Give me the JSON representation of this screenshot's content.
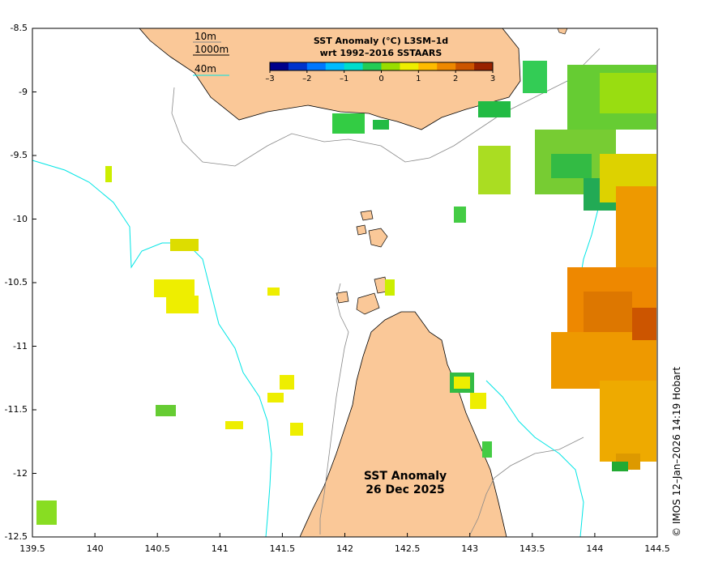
{
  "map": {
    "title_line1": "SST Anomaly",
    "title_line2": "26 Dec 2025",
    "credit": "© IMOS 12–Jan–2026 14:19 Hobart",
    "axes": {
      "lon_ticks": [
        "139.5",
        "140",
        "140.5",
        "141",
        "141.5",
        "142",
        "142.5",
        "143",
        "143.5",
        "144",
        "144.5"
      ],
      "lat_ticks": [
        "-8.5",
        "-9",
        "-9.5",
        "-10",
        "-10.5",
        "-11",
        "-11.5",
        "-12",
        "-12.5"
      ]
    },
    "legend": {
      "depth_labels": [
        "10m",
        "1000m",
        "40m"
      ],
      "colorbar_title_line1": "SST Anomaly (°C) L3SM–1d",
      "colorbar_title_line2": "wrt 1992–2016 SSTAARS",
      "colorbar_ticks": [
        "–3",
        "–2",
        "–1",
        "0",
        "1",
        "2",
        "3"
      ],
      "colorbar_colors": [
        "#00008b",
        "#0033cc",
        "#0077ff",
        "#00bbff",
        "#00ddcc",
        "#22cc55",
        "#99dd00",
        "#eeee00",
        "#ffbb00",
        "#ee8800",
        "#cc5500",
        "#992200"
      ]
    },
    "colors": {
      "land": "#fac898",
      "coast": "#000000",
      "iso10": "#888888",
      "iso40": "#00e5e5"
    }
  }
}
